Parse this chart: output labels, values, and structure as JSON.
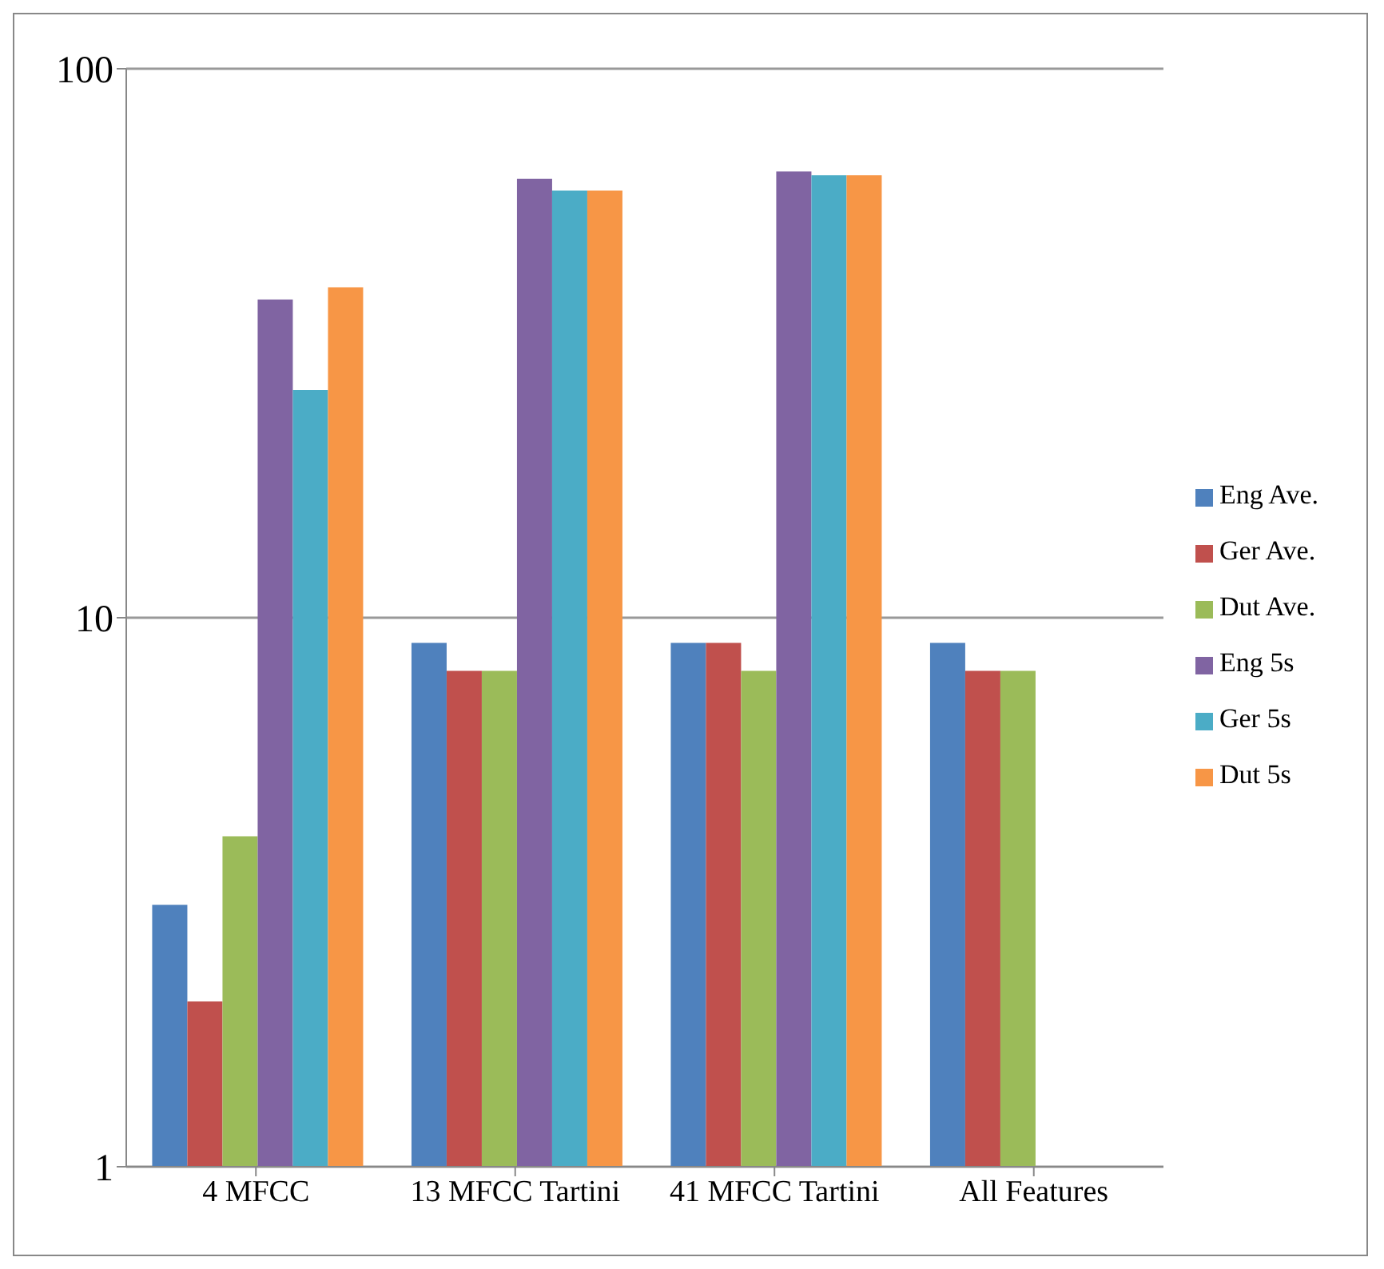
{
  "chart_data": {
    "type": "bar",
    "categories": [
      "4 MFCC",
      "13 MFCC Tartini",
      "41 MFCC Tartini",
      "All Features"
    ],
    "series": [
      {
        "name": "Eng Ave.",
        "color": "#4f81bd",
        "values": [
          3,
          9,
          9,
          9
        ]
      },
      {
        "name": "Ger Ave.",
        "color": "#c0504d",
        "values": [
          2,
          8,
          9,
          8
        ]
      },
      {
        "name": "Dut Ave.",
        "color": "#9bbb59",
        "values": [
          4,
          8,
          8,
          8
        ]
      },
      {
        "name": "Eng 5s",
        "color": "#8064a2",
        "values": [
          38,
          63,
          65,
          null
        ]
      },
      {
        "name": "Ger 5s",
        "color": "#4bacc6",
        "values": [
          26,
          60,
          64,
          null
        ]
      },
      {
        "name": "Dut 5s",
        "color": "#f79646",
        "values": [
          40,
          60,
          64,
          null
        ]
      }
    ],
    "ylim": [
      1,
      100
    ],
    "yticks": [
      1,
      10,
      100
    ],
    "log": "y",
    "grid": "y",
    "legend": "right"
  }
}
